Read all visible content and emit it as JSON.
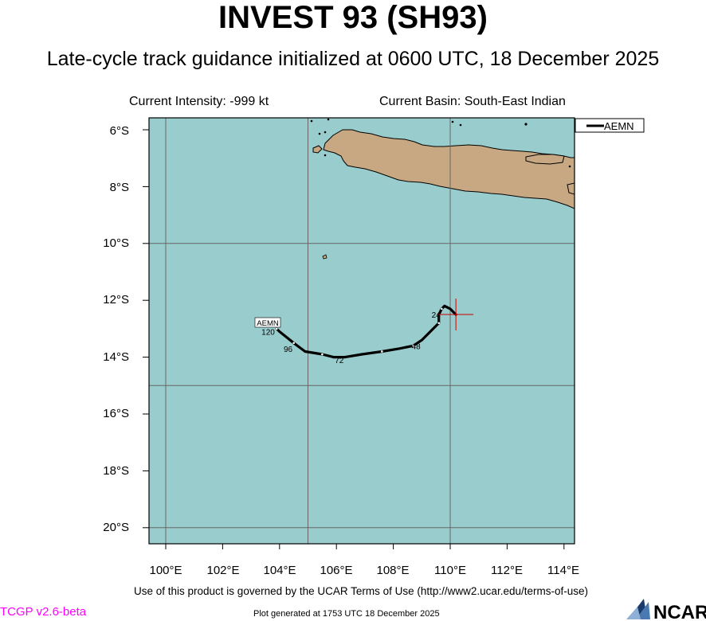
{
  "header": {
    "title": "INVEST 93 (SH93)",
    "subtitle": "Late-cycle track guidance initialized at 0600 UTC, 18 December 2025",
    "intensity": "Current Intensity: -999 kt",
    "basin": "Current Basin: South-East Indian"
  },
  "map": {
    "lat_labels": [
      "6°S",
      "8°S",
      "10°S",
      "12°S",
      "14°S",
      "16°S",
      "18°S",
      "20°S"
    ],
    "lon_labels": [
      "100°E",
      "102°E",
      "104°E",
      "106°E",
      "108°E",
      "110°E",
      "112°E",
      "114°E"
    ],
    "colors": {
      "ocean": "#99cccc",
      "land": "#c8a882",
      "track": "#000000",
      "marker": "#cc0000"
    }
  },
  "track": {
    "model": "AEMN",
    "legend_label": "AEMN",
    "start_label": "AEMN",
    "current_position": {
      "lon": 110.2,
      "lat": -12.5
    },
    "points": [
      {
        "lon": 110.2,
        "lat": -12.5
      },
      {
        "lon": 110.0,
        "lat": -12.3
      },
      {
        "lon": 109.8,
        "lat": -12.2
      },
      {
        "lon": 109.7,
        "lat": -12.3
      },
      {
        "lon": 109.6,
        "lat": -12.5
      },
      {
        "lon": 109.6,
        "lat": -12.8
      },
      {
        "lon": 109.3,
        "lat": -13.1
      },
      {
        "lon": 109.0,
        "lat": -13.4
      },
      {
        "lon": 108.7,
        "lat": -13.6
      },
      {
        "lon": 108.2,
        "lat": -13.7
      },
      {
        "lon": 107.6,
        "lat": -13.8
      },
      {
        "lon": 106.9,
        "lat": -13.9
      },
      {
        "lon": 106.3,
        "lat": -14.0
      },
      {
        "lon": 105.9,
        "lat": -14.0
      },
      {
        "lon": 105.5,
        "lat": -13.9
      },
      {
        "lon": 104.9,
        "lat": -13.8
      },
      {
        "lon": 104.5,
        "lat": -13.5
      },
      {
        "lon": 104.0,
        "lat": -13.1
      },
      {
        "lon": 103.9,
        "lat": -13.0
      }
    ],
    "time_labels": [
      {
        "text": "24",
        "lon": 109.5,
        "lat": -12.5
      },
      {
        "text": "48",
        "lon": 108.8,
        "lat": -13.6
      },
      {
        "text": "72",
        "lon": 106.1,
        "lat": -14.1
      },
      {
        "text": "96",
        "lon": 104.3,
        "lat": -13.7
      },
      {
        "text": "120",
        "lon": 103.6,
        "lat": -13.1
      }
    ]
  },
  "footer": {
    "terms": "Use of this product is governed by the UCAR Terms of Use (http://www2.ucar.edu/terms-of-use)",
    "version": "TCGP v2.6-beta",
    "generated": "Plot generated at 1753 UTC   18 December 2025",
    "logo": "NCAR"
  }
}
